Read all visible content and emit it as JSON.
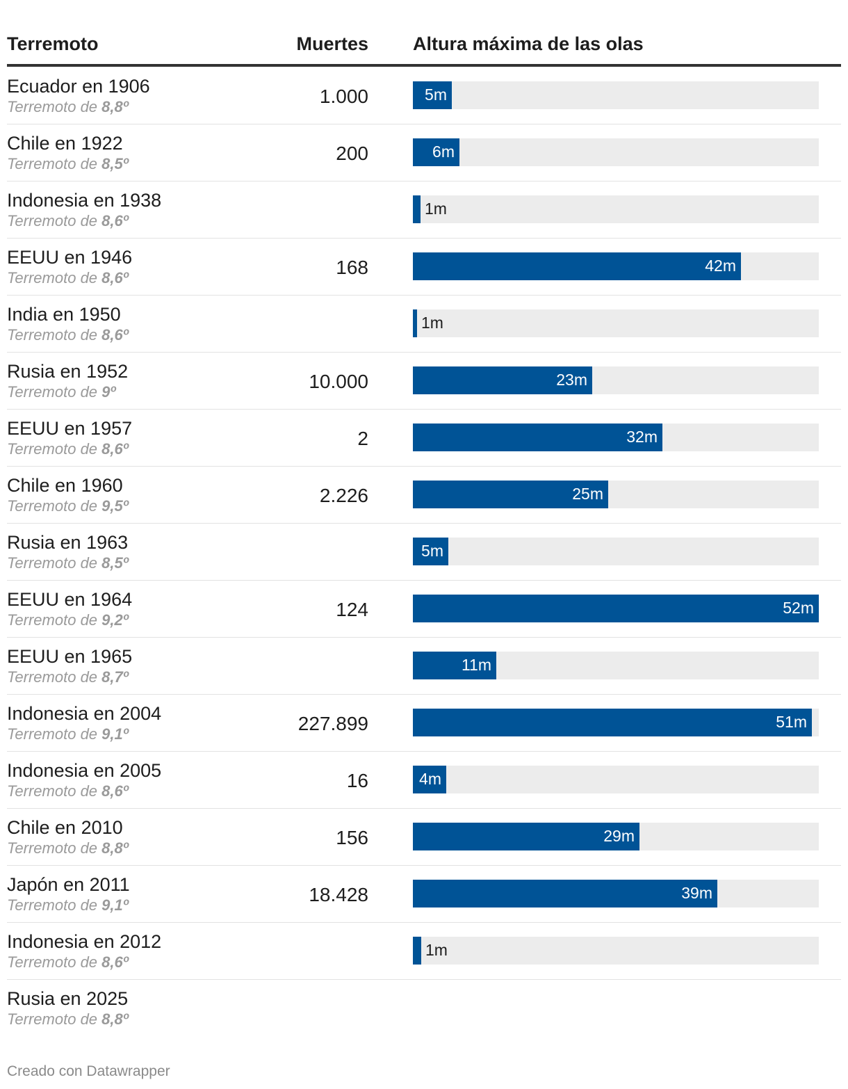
{
  "chart_data": {
    "type": "table",
    "columns": [
      "Terremoto",
      "Muertes",
      "Altura máxima de las olas"
    ],
    "max_value": 52,
    "unit": "m",
    "rows": [
      {
        "name": "Ecuador en 1906",
        "sub_prefix": "Terremoto de",
        "magnitude": "8,8º",
        "deaths": "1.000",
        "wave": 5,
        "wave_label": "5m"
      },
      {
        "name": "Chile en 1922",
        "sub_prefix": "Terremoto de",
        "magnitude": "8,5º",
        "deaths": "200",
        "wave": 6,
        "wave_label": "6m"
      },
      {
        "name": "Indonesia en 1938",
        "sub_prefix": "Terremoto de",
        "magnitude": "8,6º",
        "deaths": "",
        "wave": 1,
        "wave_label": "1m"
      },
      {
        "name": "EEUU en 1946",
        "sub_prefix": "Terremoto de",
        "magnitude": "8,6º",
        "deaths": "168",
        "wave": 42,
        "wave_label": "42m"
      },
      {
        "name": "India en 1950",
        "sub_prefix": "Terremoto de",
        "magnitude": "8,6º",
        "deaths": "",
        "wave": 0.5,
        "wave_label": "1m"
      },
      {
        "name": "Rusia en 1952",
        "sub_prefix": "Terremoto de",
        "magnitude": "9º",
        "deaths": "10.000",
        "wave": 23,
        "wave_label": "23m"
      },
      {
        "name": "EEUU en 1957",
        "sub_prefix": "Terremoto de",
        "magnitude": "8,6º",
        "deaths": "2",
        "wave": 32,
        "wave_label": "32m"
      },
      {
        "name": "Chile en 1960",
        "sub_prefix": "Terremoto de",
        "magnitude": "9,5º",
        "deaths": "2.226",
        "wave": 25,
        "wave_label": "25m"
      },
      {
        "name": "Rusia en 1963",
        "sub_prefix": "Terremoto de",
        "magnitude": "8,5º",
        "deaths": "",
        "wave": 4.5,
        "wave_label": "5m"
      },
      {
        "name": "EEUU en 1964",
        "sub_prefix": "Terremoto de",
        "magnitude": "9,2º",
        "deaths": "124",
        "wave": 52,
        "wave_label": "52m"
      },
      {
        "name": "EEUU en 1965",
        "sub_prefix": "Terremoto de",
        "magnitude": "8,7º",
        "deaths": "",
        "wave": 10.7,
        "wave_label": "11m"
      },
      {
        "name": "Indonesia en 2004",
        "sub_prefix": "Terremoto de",
        "magnitude": "9,1º",
        "deaths": "227.899",
        "wave": 51.1,
        "wave_label": "51m"
      },
      {
        "name": "Indonesia en 2005",
        "sub_prefix": "Terremoto de",
        "magnitude": "8,6º",
        "deaths": "16",
        "wave": 4.3,
        "wave_label": "4m"
      },
      {
        "name": "Chile en 2010",
        "sub_prefix": "Terremoto de",
        "magnitude": "8,8º",
        "deaths": "156",
        "wave": 29,
        "wave_label": "29m"
      },
      {
        "name": "Japón en 2011",
        "sub_prefix": "Terremoto de",
        "magnitude": "9,1º",
        "deaths": "18.428",
        "wave": 39,
        "wave_label": "39m"
      },
      {
        "name": "Indonesia en 2012",
        "sub_prefix": "Terremoto de",
        "magnitude": "8,6º",
        "deaths": "",
        "wave": 1.1,
        "wave_label": "1m"
      },
      {
        "name": "Rusia en 2025",
        "sub_prefix": "Terremoto de",
        "magnitude": "8,8º",
        "deaths": "",
        "wave": null,
        "wave_label": ""
      }
    ],
    "colors": {
      "bar": "#005396",
      "track": "#ececec"
    }
  },
  "header": {
    "col_name": "Terremoto",
    "col_deaths": "Muertes",
    "col_wave": "Altura máxima de las olas"
  },
  "footer": {
    "credit": "Creado con Datawrapper"
  }
}
